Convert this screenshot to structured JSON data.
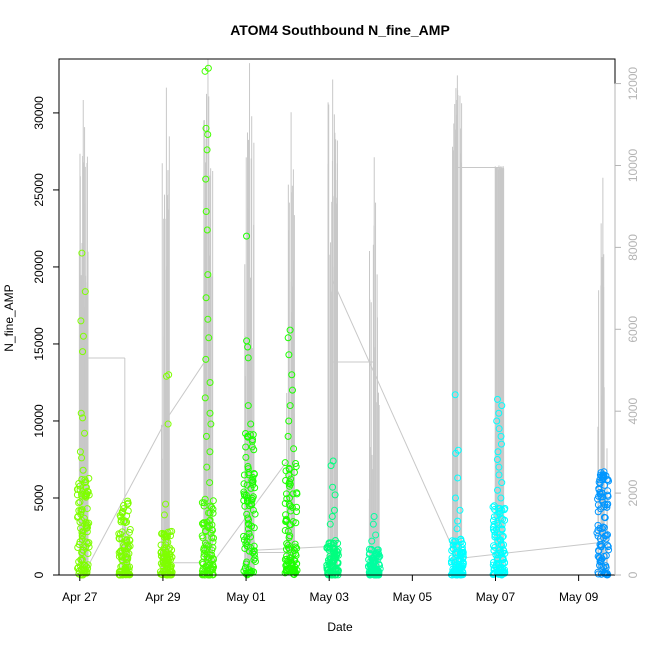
{
  "chart_data": {
    "type": "scatter",
    "title": "ATOM4 Southbound N_fine_AMP",
    "xlabel": "Date",
    "ylabel": "N_fine_AMP",
    "x_tick_labels": [
      "Apr 27",
      "Apr 29",
      "May 01",
      "May 03",
      "May 05",
      "May 07",
      "May 09"
    ],
    "y_ticks_left": [
      0,
      5000,
      10000,
      15000,
      20000,
      25000,
      30000
    ],
    "y_ticks_right": [
      0,
      2000,
      4000,
      6000,
      8000,
      10000,
      12000
    ],
    "xlim": [
      "2014-04-26T12:00",
      "2014-05-09T21:00"
    ],
    "ylim_left": [
      0,
      33500
    ],
    "ylim_right": [
      0,
      12600
    ],
    "grid": false,
    "point_colors": [
      "#7FFF00",
      "#1CFF00",
      "#00FFA0",
      "#00FFFF",
      "#0096FF"
    ],
    "line_color": "#C8C8C8",
    "right_axis_color": "#B4B4B4",
    "points_series": [
      {
        "date": "2014-04-27T02:00",
        "color": "#7FFF00",
        "typical_max": 6400,
        "high_values": [
          20900,
          18400,
          16500,
          15500,
          14500,
          10500,
          10200,
          9200,
          8000,
          7600,
          6800,
          6200
        ]
      },
      {
        "date": "2014-04-28T02:00",
        "color": "#7FFF00",
        "typical_max": 4700,
        "high_values": [
          4800,
          4600,
          3400,
          2100
        ]
      },
      {
        "date": "2014-04-29T02:00",
        "color": "#7FFF00",
        "typical_max": 3000,
        "high_values": [
          13000,
          12900,
          9800,
          4600,
          3900
        ]
      },
      {
        "date": "2014-04-30T02:00",
        "color": "#44FF00",
        "typical_max": 5200,
        "high_values": [
          32900,
          32700,
          29000,
          28600,
          27600,
          25700,
          23600,
          22400,
          19500,
          18000,
          16600,
          15400,
          14000,
          12500,
          11500,
          10500,
          9800,
          9000,
          8000,
          7000,
          6000
        ]
      },
      {
        "date": "2014-05-01T02:00",
        "color": "#1CFF00",
        "typical_max": 9200,
        "high_values": [
          22000,
          15200,
          14800,
          14100,
          11000,
          9800
        ]
      },
      {
        "date": "2014-05-02T02:00",
        "color": "#1CFF00",
        "typical_max": 7500,
        "high_values": [
          15900,
          15400,
          14300,
          13000,
          12000,
          11000,
          10000,
          9000,
          8200
        ]
      },
      {
        "date": "2014-05-03T02:00",
        "color": "#00FF7F",
        "typical_max": 2300,
        "high_values": [
          7400,
          7100,
          5700,
          5200,
          4200,
          3800,
          3300
        ]
      },
      {
        "date": "2014-05-04T02:00",
        "color": "#00FFA0",
        "typical_max": 1700,
        "high_values": [
          3800,
          3300,
          2600,
          2200
        ]
      },
      {
        "date": "2014-05-06T02:00",
        "color": "#00FFFF",
        "typical_max": 2400,
        "high_values": [
          11700,
          8100,
          7900,
          6300,
          5000,
          4200,
          3500,
          3000
        ]
      },
      {
        "date": "2014-05-07T02:00",
        "color": "#00FFFF",
        "typical_max": 4600,
        "high_values": [
          11400,
          11000,
          10500,
          10000,
          9500,
          9000,
          8500,
          8000,
          7500,
          7000,
          6500,
          6000,
          5500,
          5000
        ]
      },
      {
        "date": "2014-05-09T14:00",
        "color": "#0096FF",
        "typical_max": 6700,
        "high_values": [
          6700,
          6500,
          6200
        ]
      }
    ],
    "line_series": {
      "axis": "right",
      "bursts": [
        {
          "date": "2014-04-27T02:00",
          "peak": 11600,
          "base": 5200
        },
        {
          "date": "2014-04-28T02:00",
          "peak": 1800,
          "base": 100
        },
        {
          "date": "2014-04-29T02:00",
          "peak": 11900,
          "base": 300
        },
        {
          "date": "2014-04-30T02:00",
          "peak": 12600,
          "base": 5200
        },
        {
          "date": "2014-05-01T02:00",
          "peak": 12500,
          "base": 500
        },
        {
          "date": "2014-05-02T02:00",
          "peak": 11300,
          "base": 1600
        },
        {
          "date": "2014-05-03T02:00",
          "peak": 12100,
          "base": 6900
        },
        {
          "date": "2014-05-04T02:00",
          "peak": 10200,
          "base": 700
        },
        {
          "date": "2014-05-06T02:00",
          "peak": 12200,
          "base": 9900
        },
        {
          "date": "2014-05-07T02:00",
          "peak": 10000,
          "base": 9900
        },
        {
          "date": "2014-05-09T14:00",
          "peak": 9700,
          "base": 500
        }
      ],
      "connectors": [
        {
          "from": [
            "2014-04-27T00:00",
            0
          ],
          "to": [
            "2014-04-27T00:00",
            5300
          ]
        },
        {
          "from": [
            "2014-04-27T00:00",
            5300
          ],
          "to": [
            "2014-04-28T02:00",
            5300
          ]
        },
        {
          "from": [
            "2014-04-28T02:00",
            5300
          ],
          "to": [
            "2014-04-28T02:00",
            100
          ]
        },
        {
          "from": [
            "2014-04-27T02:00",
            0
          ],
          "to": [
            "2014-04-29T02:00",
            3800
          ]
        },
        {
          "from": [
            "2014-04-29T02:00",
            3800
          ],
          "to": [
            "2014-04-30T00:00",
            5200
          ]
        },
        {
          "from": [
            "2014-04-29T02:00",
            300
          ],
          "to": [
            "2014-04-29T21:00",
            300
          ]
        },
        {
          "from": [
            "2014-04-30T03:00",
            200
          ],
          "to": [
            "2014-05-02T00:00",
            2800
          ]
        },
        {
          "from": [
            "2014-05-01T02:00",
            600
          ],
          "to": [
            "2014-05-03T02:00",
            700
          ]
        },
        {
          "from": [
            "2014-05-01T02:00",
            550
          ],
          "to": [
            "2014-05-02T02:00",
            550
          ]
        },
        {
          "from": [
            "2014-05-03T02:00",
            5300
          ],
          "to": [
            "2014-05-03T02:00",
            7200
          ]
        },
        {
          "from": [
            "2014-05-03T02:00",
            7200
          ],
          "to": [
            "2014-05-06T02:00",
            400
          ]
        },
        {
          "from": [
            "2014-05-03T02:00",
            5200
          ],
          "to": [
            "2014-05-04T02:00",
            5200
          ]
        },
        {
          "from": [
            "2014-05-04T02:00",
            5200
          ],
          "to": [
            "2014-05-04T02:00",
            700
          ]
        },
        {
          "from": [
            "2014-05-06T02:00",
            9950
          ],
          "to": [
            "2014-05-07T02:00",
            9950
          ]
        },
        {
          "from": [
            "2014-05-06T02:00",
            400
          ],
          "to": [
            "2014-05-09T14:00",
            800
          ]
        }
      ]
    }
  }
}
